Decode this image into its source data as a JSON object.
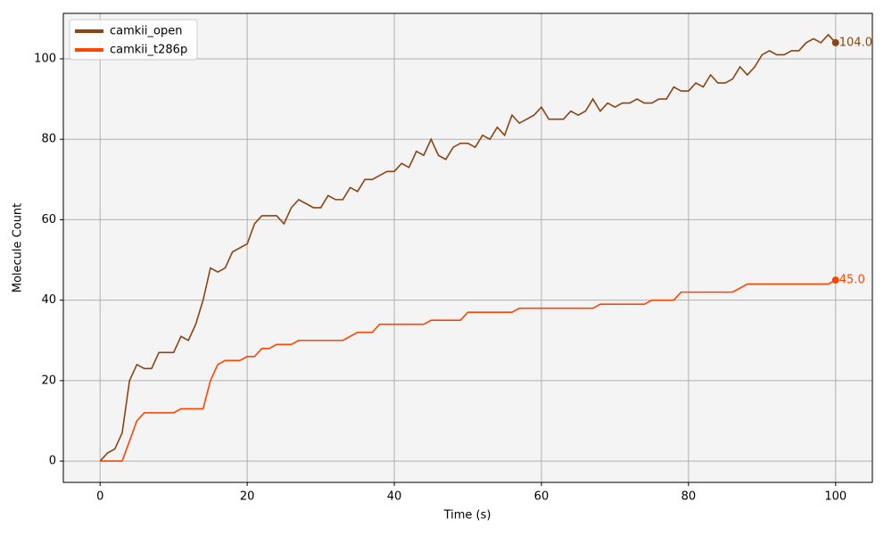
{
  "chart_data": {
    "type": "line",
    "xlabel": "Time (s)",
    "ylabel": "Molecule Count",
    "x": [
      0,
      1,
      2,
      3,
      4,
      5,
      6,
      7,
      8,
      9,
      10,
      11,
      12,
      13,
      14,
      15,
      16,
      17,
      18,
      19,
      20,
      21,
      22,
      23,
      24,
      25,
      26,
      27,
      28,
      29,
      30,
      31,
      32,
      33,
      34,
      35,
      36,
      37,
      38,
      39,
      40,
      41,
      42,
      43,
      44,
      45,
      46,
      47,
      48,
      49,
      50,
      51,
      52,
      53,
      54,
      55,
      56,
      57,
      58,
      59,
      60,
      61,
      62,
      63,
      64,
      65,
      66,
      67,
      68,
      69,
      70,
      71,
      72,
      73,
      74,
      75,
      76,
      77,
      78,
      79,
      80,
      81,
      82,
      83,
      84,
      85,
      86,
      87,
      88,
      89,
      90,
      91,
      92,
      93,
      94,
      95,
      96,
      97,
      98,
      99,
      100
    ],
    "series": [
      {
        "name": "camkii_open",
        "color": "#8b4513",
        "end_label": "104.0",
        "values": [
          0,
          2,
          3,
          7,
          20,
          24,
          23,
          23,
          27,
          27,
          27,
          31,
          30,
          34,
          40,
          48,
          47,
          48,
          52,
          53,
          54,
          59,
          61,
          61,
          61,
          59,
          63,
          65,
          64,
          63,
          63,
          66,
          65,
          65,
          68,
          67,
          70,
          70,
          71,
          72,
          72,
          74,
          73,
          77,
          76,
          80,
          76,
          75,
          78,
          79,
          79,
          78,
          81,
          80,
          83,
          81,
          86,
          84,
          85,
          86,
          88,
          85,
          85,
          85,
          87,
          86,
          87,
          90,
          87,
          89,
          88,
          89,
          89,
          90,
          89,
          89,
          90,
          90,
          93,
          92,
          92,
          94,
          93,
          96,
          94,
          94,
          95,
          98,
          96,
          98,
          101,
          102,
          101,
          101,
          102,
          102,
          104,
          105,
          104,
          106,
          104
        ]
      },
      {
        "name": "camkii_t286p",
        "color": "#ff4500",
        "end_label": "45.0",
        "values": [
          0,
          0,
          0,
          0,
          5,
          10,
          12,
          12,
          12,
          12,
          12,
          13,
          13,
          13,
          13,
          20,
          24,
          25,
          25,
          25,
          26,
          26,
          28,
          28,
          29,
          29,
          29,
          30,
          30,
          30,
          30,
          30,
          30,
          30,
          31,
          32,
          32,
          32,
          34,
          34,
          34,
          34,
          34,
          34,
          34,
          35,
          35,
          35,
          35,
          35,
          37,
          37,
          37,
          37,
          37,
          37,
          37,
          38,
          38,
          38,
          38,
          38,
          38,
          38,
          38,
          38,
          38,
          38,
          39,
          39,
          39,
          39,
          39,
          39,
          39,
          40,
          40,
          40,
          40,
          42,
          42,
          42,
          42,
          42,
          42,
          42,
          42,
          43,
          44,
          44,
          44,
          44,
          44,
          44,
          44,
          44,
          44,
          44,
          44,
          44,
          45
        ]
      }
    ],
    "xlim": [
      -5,
      105
    ],
    "ylim": [
      -5.3,
      111.3
    ],
    "xticks": [
      0,
      20,
      40,
      60,
      80,
      100
    ],
    "yticks": [
      0,
      20,
      40,
      60,
      80,
      100
    ],
    "grid": true,
    "legend": "upper-left"
  }
}
